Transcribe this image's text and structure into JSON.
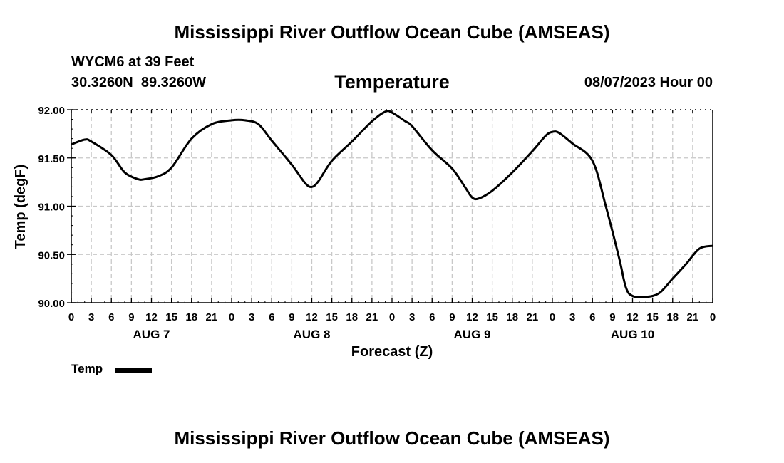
{
  "header": {
    "title": "Mississippi River Outflow Ocean Cube (AMSEAS)",
    "station": "WYCM6 at 39 Feet",
    "coordinates": "30.3260N  89.3260W",
    "variable": "Temperature",
    "datetime": "08/07/2023 Hour 00"
  },
  "footer": {
    "title": "Mississippi River Outflow Ocean Cube (AMSEAS)"
  },
  "legend": {
    "label": "Temp",
    "color": "#000000"
  },
  "chart_data": {
    "type": "line",
    "title": "Temperature",
    "xlabel": "Forecast (Z)",
    "ylabel": "Temp (degF)",
    "xlim": [
      0,
      96
    ],
    "ylim": [
      90.0,
      92.0
    ],
    "grid": true,
    "y_ticks": [
      "90.00",
      "90.50",
      "91.00",
      "91.50",
      "92.00"
    ],
    "y_tick_values": [
      90.0,
      90.5,
      91.0,
      91.5,
      92.0
    ],
    "x_tick_labels": [
      "0",
      "3",
      "6",
      "9",
      "12",
      "15",
      "18",
      "21",
      "0",
      "3",
      "6",
      "9",
      "12",
      "15",
      "18",
      "21",
      "0",
      "3",
      "6",
      "9",
      "12",
      "15",
      "18",
      "21",
      "0",
      "3",
      "6",
      "9",
      "12",
      "15",
      "18",
      "21",
      "0"
    ],
    "x_tick_hours": [
      0,
      3,
      6,
      9,
      12,
      15,
      18,
      21,
      24,
      27,
      30,
      33,
      36,
      39,
      42,
      45,
      48,
      51,
      54,
      57,
      60,
      63,
      66,
      69,
      72,
      75,
      78,
      81,
      84,
      87,
      90,
      93,
      96
    ],
    "day_labels": [
      {
        "hour": 12,
        "label": "AUG 7"
      },
      {
        "hour": 36,
        "label": "AUG 8"
      },
      {
        "hour": 60,
        "label": "AUG 9"
      },
      {
        "hour": 84,
        "label": "AUG 10"
      }
    ],
    "series": [
      {
        "name": "Temp",
        "x": [
          0,
          2,
          3,
          6,
          8,
          10,
          11,
          13,
          15,
          18,
          21,
          24,
          26,
          28,
          30,
          33,
          35,
          36,
          37,
          39,
          42,
          45,
          47,
          48,
          50,
          51,
          54,
          57,
          59,
          60,
          61,
          63,
          66,
          69,
          71,
          72,
          73,
          75,
          78,
          80,
          82,
          83,
          84,
          86,
          88,
          90,
          92,
          94,
          96
        ],
        "y": [
          91.64,
          91.69,
          91.67,
          91.53,
          91.35,
          91.28,
          91.28,
          91.31,
          91.4,
          91.7,
          91.85,
          91.89,
          91.89,
          91.85,
          91.68,
          91.43,
          91.24,
          91.2,
          91.26,
          91.47,
          91.67,
          91.88,
          91.98,
          91.97,
          91.88,
          91.83,
          91.58,
          91.39,
          91.19,
          91.09,
          91.08,
          91.16,
          91.35,
          91.57,
          91.73,
          91.77,
          91.76,
          91.65,
          91.47,
          91.0,
          90.46,
          90.16,
          90.07,
          90.06,
          90.1,
          90.25,
          90.4,
          90.56,
          90.59
        ]
      }
    ]
  }
}
